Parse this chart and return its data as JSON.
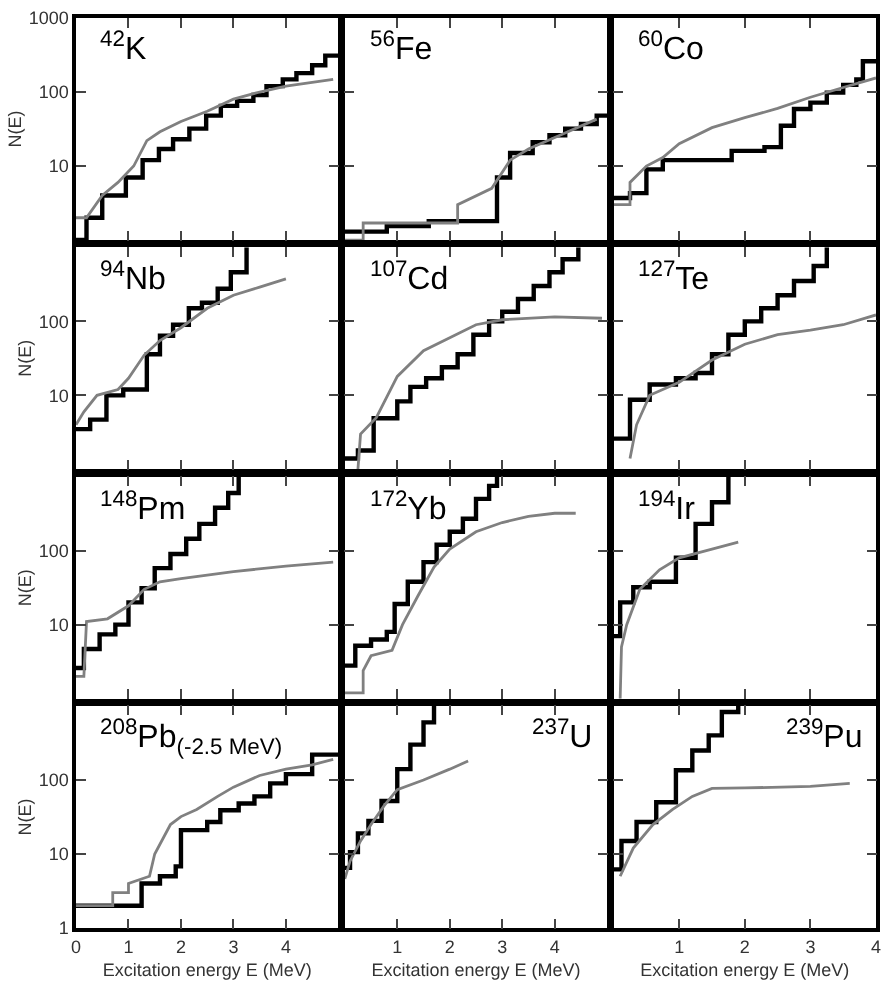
{
  "chart_data": [
    {
      "type": "step",
      "title": "$^{42}$K",
      "ylabel": "N(E)",
      "log": "y",
      "tick_labels": "y",
      "xlim": [
        0,
        5
      ],
      "xticks": [
        1,
        2,
        3,
        4
      ],
      "ylim": [
        1,
        1000
      ],
      "yticks": [
        10,
        100,
        1000
      ],
      "series": [
        {
          "color": "#000000",
          "x": [
            0,
            0.2,
            0.5,
            0.95,
            1.27,
            1.58,
            1.85,
            2.16,
            2.48,
            2.76,
            3.07,
            3.38,
            3.63,
            3.94,
            4.2,
            4.5,
            4.75,
            5
          ],
          "values": [
            1,
            2,
            4,
            7,
            12,
            17,
            23,
            32,
            48,
            65,
            76,
            91,
            120,
            148,
            180,
            230,
            310,
            310
          ]
        },
        {
          "type": "line",
          "color": "#808080",
          "x": [
            0,
            0.2,
            0.5,
            0.8,
            1.1,
            1.35,
            1.6,
            2,
            2.5,
            3,
            3.5,
            4,
            4.9
          ],
          "values": [
            2,
            2,
            4,
            6,
            10,
            22,
            29,
            40,
            55,
            80,
            100,
            120,
            148
          ]
        }
      ]
    },
    {
      "type": "step",
      "title": "$^{56}$Fe",
      "log": "y",
      "tick_labels": false,
      "xlim": [
        0,
        5
      ],
      "xticks": [
        1,
        2,
        3,
        4
      ],
      "ylim": [
        1,
        1000
      ],
      "yticks": [
        10,
        100
      ],
      "series": [
        {
          "color": "#000000",
          "x": [
            0,
            0.8,
            1.6,
            2.9,
            3.15,
            3.58,
            3.9,
            4.2,
            4.5,
            4.8,
            5
          ],
          "values": [
            1.3,
            1.55,
            1.8,
            7,
            15,
            21,
            26,
            32,
            37,
            48,
            48
          ]
        },
        {
          "type": "line",
          "color": "#808080",
          "x": [
            0,
            0.35,
            0.35,
            2.15,
            2.15,
            2.8,
            3.15,
            3.5,
            4.1,
            4.8
          ],
          "values": [
            1,
            1,
            1.7,
            1.7,
            3,
            5,
            12,
            17,
            26,
            43
          ]
        }
      ]
    },
    {
      "type": "step",
      "title": "$^{60}$Co",
      "log": "y",
      "tick_labels": false,
      "xlim": [
        0,
        4
      ],
      "xticks": [
        1,
        2,
        3
      ],
      "ylim": [
        1,
        1000
      ],
      "yticks": [
        10,
        100
      ],
      "series": [
        {
          "color": "#000000",
          "x": [
            0,
            0.25,
            0.5,
            0.75,
            1.8,
            2.3,
            2.55,
            2.75,
            3.0,
            3.25,
            3.5,
            3.7,
            3.8,
            4
          ],
          "values": [
            3.7,
            4.3,
            9,
            12,
            16,
            18,
            35,
            59,
            72,
            98,
            125,
            148,
            260,
            260
          ]
        },
        {
          "type": "line",
          "color": "#808080",
          "x": [
            0,
            0.25,
            0.25,
            0.5,
            0.75,
            1.0,
            1.5,
            2.0,
            2.5,
            3.0,
            3.5,
            4.0
          ],
          "values": [
            3,
            3,
            6,
            10,
            13,
            20,
            33,
            45,
            60,
            85,
            115,
            155
          ]
        }
      ]
    },
    {
      "type": "step",
      "title": "$^{94}$Nb",
      "ylabel": "N(E)",
      "log": "y",
      "tick_labels": "y",
      "xlim": [
        0,
        5
      ],
      "xticks": [
        1,
        2,
        3,
        4
      ],
      "ylim": [
        1,
        1000
      ],
      "yticks": [
        10,
        100
      ],
      "series": [
        {
          "color": "#000000",
          "x": [
            0,
            0.27,
            0.58,
            0.9,
            1.35,
            1.6,
            1.85,
            2.15,
            2.4,
            2.7,
            2.95,
            3.25
          ],
          "values": [
            3.5,
            4.7,
            10,
            12,
            36,
            64,
            90,
            150,
            178,
            275,
            460,
            1000
          ]
        },
        {
          "type": "line",
          "color": "#808080",
          "x": [
            0,
            0.15,
            0.4,
            0.8,
            1.0,
            1.3,
            1.6,
            2.0,
            2.5,
            3.0,
            3.5,
            4.0
          ],
          "values": [
            4,
            6,
            10,
            12,
            17,
            35,
            55,
            82,
            150,
            225,
            290,
            375
          ]
        }
      ]
    },
    {
      "type": "step",
      "title": "$^{107}$Cd",
      "log": "y",
      "tick_labels": false,
      "xlim": [
        0,
        5
      ],
      "xticks": [
        1,
        2,
        3,
        4
      ],
      "ylim": [
        1,
        1000
      ],
      "yticks": [
        10,
        100
      ],
      "series": [
        {
          "color": "#000000",
          "x": [
            0,
            0.25,
            0.55,
            1.0,
            1.25,
            1.55,
            1.85,
            2.15,
            2.45,
            2.75,
            3.0,
            3.3,
            3.6,
            3.9,
            4.15,
            4.45
          ],
          "values": [
            1.4,
            1.8,
            4.9,
            8.3,
            13,
            17,
            24,
            36,
            66,
            100,
            135,
            200,
            300,
            460,
            690,
            1000
          ]
        },
        {
          "type": "line",
          "color": "#808080",
          "x": [
            0.25,
            0.3,
            0.6,
            1.0,
            1.5,
            2.0,
            2.5,
            3.0,
            4.0,
            4.9
          ],
          "values": [
            1,
            3,
            5,
            18,
            40,
            60,
            90,
            105,
            115,
            110
          ]
        }
      ]
    },
    {
      "type": "step",
      "title": "$^{127}$Te",
      "log": "y",
      "tick_labels": false,
      "xlim": [
        0,
        4
      ],
      "xticks": [
        1,
        2,
        3
      ],
      "ylim": [
        1,
        1000
      ],
      "yticks": [
        10,
        100
      ],
      "series": [
        {
          "color": "#000000",
          "x": [
            0,
            0.25,
            0.55,
            0.95,
            1.25,
            1.5,
            1.75,
            2.0,
            2.25,
            2.5,
            2.75,
            3.05,
            3.25
          ],
          "values": [
            2.6,
            8.7,
            14,
            17,
            20,
            36,
            66,
            100,
            150,
            225,
            350,
            560,
            1000
          ]
        },
        {
          "type": "line",
          "color": "#808080",
          "x": [
            0.25,
            0.35,
            0.55,
            1.0,
            1.5,
            2.0,
            2.5,
            3.0,
            3.5,
            4.0
          ],
          "values": [
            1.4,
            4,
            10,
            15,
            30,
            49,
            66,
            76,
            90,
            122
          ]
        }
      ]
    },
    {
      "type": "step",
      "title": "$^{148}$Pm",
      "ylabel": "N(E)",
      "log": "y",
      "tick_labels": "y",
      "xlim": [
        0,
        5
      ],
      "xticks": [
        1,
        2,
        3,
        4
      ],
      "ylim": [
        1,
        1000
      ],
      "yticks": [
        10,
        100
      ],
      "series": [
        {
          "color": "#000000",
          "x": [
            0,
            0.15,
            0.45,
            0.75,
            1.0,
            1.25,
            1.5,
            1.8,
            2.1,
            2.35,
            2.65,
            2.9,
            3.1
          ],
          "values": [
            2.6,
            4.7,
            7.4,
            10,
            20,
            31,
            58,
            90,
            145,
            230,
            380,
            600,
            1000
          ]
        },
        {
          "type": "line",
          "color": "#808080",
          "x": [
            0,
            0.15,
            0.2,
            0.6,
            1.0,
            1.3,
            1.6,
            2.0,
            3.0,
            4.0,
            4.9
          ],
          "values": [
            2,
            2,
            11,
            12,
            18,
            30,
            38,
            42,
            52,
            62,
            70
          ]
        }
      ]
    },
    {
      "type": "step",
      "title": "$^{172}$Yb",
      "log": "y",
      "tick_labels": false,
      "xlim": [
        0,
        5
      ],
      "xticks": [
        1,
        2,
        3,
        4
      ],
      "ylim": [
        1,
        1000
      ],
      "yticks": [
        10,
        100
      ],
      "series": [
        {
          "color": "#000000",
          "x": [
            0,
            0.2,
            0.5,
            0.8,
            0.95,
            1.2,
            1.5,
            1.75,
            2.0,
            2.25,
            2.5,
            2.75,
            2.9
          ],
          "values": [
            2.8,
            5.2,
            6.3,
            8,
            19,
            38,
            70,
            120,
            180,
            270,
            500,
            750,
            1000
          ]
        },
        {
          "type": "line",
          "color": "#808080",
          "x": [
            0,
            0.35,
            0.35,
            0.5,
            0.9,
            1.1,
            1.4,
            1.7,
            2.0,
            2.5,
            3.0,
            3.5,
            4.0,
            4.4
          ],
          "values": [
            1.2,
            1.2,
            2.4,
            3.8,
            4.5,
            10,
            25,
            60,
            105,
            180,
            240,
            290,
            320,
            320
          ]
        }
      ]
    },
    {
      "type": "step",
      "title": "$^{194}$Ir",
      "log": "y",
      "tick_labels": false,
      "xlim": [
        0,
        4
      ],
      "xticks": [
        1,
        2,
        3
      ],
      "ylim": [
        1,
        1000
      ],
      "yticks": [
        10,
        100
      ],
      "series": [
        {
          "color": "#000000",
          "x": [
            0,
            0.1,
            0.3,
            0.55,
            0.95,
            1.25,
            1.5,
            1.75
          ],
          "values": [
            7,
            20,
            32,
            38,
            80,
            230,
            450,
            1000
          ]
        },
        {
          "type": "line",
          "color": "#808080",
          "x": [
            0.1,
            0.12,
            0.2,
            0.4,
            0.7,
            1.0,
            1.5,
            1.9
          ],
          "values": [
            1,
            5,
            10,
            30,
            55,
            80,
            105,
            130
          ]
        }
      ]
    },
    {
      "type": "step",
      "title": "$^{208}$Pb$_{(-2.5 MeV)}$",
      "ylabel": "N(E)",
      "xlabel": "Excitation energy E (MeV)",
      "log": "y",
      "xlim": [
        0,
        5
      ],
      "xticks": [
        0,
        1,
        2,
        3,
        4
      ],
      "ylim": [
        1,
        1000
      ],
      "yticks": [
        1,
        10,
        100
      ],
      "series": [
        {
          "color": "#000000",
          "x": [
            0,
            1.25,
            1.6,
            1.9,
            2.0,
            2.5,
            2.75,
            3.1,
            3.4,
            3.7,
            4.0,
            4.5,
            5
          ],
          "values": [
            2,
            4,
            5,
            6.8,
            21,
            27,
            39,
            48,
            60,
            90,
            120,
            220,
            220
          ]
        },
        {
          "type": "line",
          "color": "#808080",
          "x": [
            0,
            0.7,
            0.7,
            1.0,
            1.0,
            1.4,
            1.5,
            1.8,
            2.0,
            2.3,
            2.7,
            3.0,
            3.5,
            4.0,
            4.5,
            4.9
          ],
          "values": [
            2,
            2,
            3,
            3,
            4,
            5,
            10,
            25,
            32,
            40,
            60,
            80,
            115,
            140,
            160,
            190
          ]
        }
      ]
    },
    {
      "type": "step",
      "title": "$^{237}$U",
      "xlabel": "Excitation energy E (MeV)",
      "log": "y",
      "tick_labels": "x",
      "xlim": [
        0,
        5
      ],
      "xticks": [
        1,
        2,
        3,
        4
      ],
      "ylim": [
        1,
        1000
      ],
      "yticks": [
        10,
        100
      ],
      "series": [
        {
          "color": "#000000",
          "x": [
            0,
            0.1,
            0.25,
            0.45,
            0.7,
            1.0,
            1.25,
            1.5,
            1.7
          ],
          "values": [
            6.5,
            10.6,
            19,
            28,
            52,
            140,
            300,
            600,
            1000
          ]
        },
        {
          "type": "line",
          "color": "#808080",
          "x": [
            0,
            0.1,
            0.3,
            0.5,
            0.75,
            1.0,
            1.5,
            2.0,
            2.35
          ],
          "values": [
            4.6,
            8,
            15,
            25,
            45,
            74,
            100,
            140,
            180
          ]
        }
      ]
    },
    {
      "type": "step",
      "title": "$^{239}$Pu",
      "xlabel": "Excitation energy E (MeV)",
      "log": "y",
      "tick_labels": "x",
      "xlim": [
        0,
        4
      ],
      "xticks": [
        1,
        2,
        3,
        4
      ],
      "ylim": [
        1,
        1000
      ],
      "yticks": [
        10,
        100
      ],
      "series": [
        {
          "color": "#000000",
          "x": [
            0,
            0.12,
            0.35,
            0.65,
            0.95,
            1.2,
            1.45,
            1.65,
            1.9
          ],
          "values": [
            6.2,
            15,
            27,
            50,
            135,
            250,
            400,
            830,
            1000
          ]
        },
        {
          "type": "line",
          "color": "#808080",
          "x": [
            0.1,
            0.3,
            0.6,
            0.9,
            1.2,
            1.5,
            2.0,
            3.0,
            3.6
          ],
          "values": [
            5,
            12,
            25,
            40,
            60,
            77,
            78,
            82,
            90
          ]
        }
      ]
    }
  ]
}
